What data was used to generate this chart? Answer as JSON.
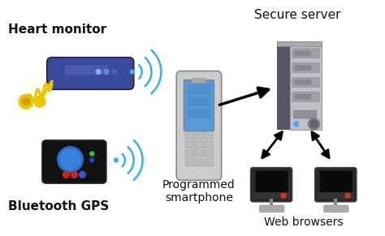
{
  "bg_color": "#ffffff",
  "labels": {
    "heart_monitor": "Heart monitor",
    "bluetooth_gps": "Bluetooth GPS",
    "smartphone": "Programmed\nsmartphone",
    "server": "Secure server",
    "browsers": "Web browsers"
  },
  "wifi_color": "#3ab0e0",
  "text_color": "#111111",
  "figsize": [
    4.74,
    2.91
  ],
  "dpi": 100
}
